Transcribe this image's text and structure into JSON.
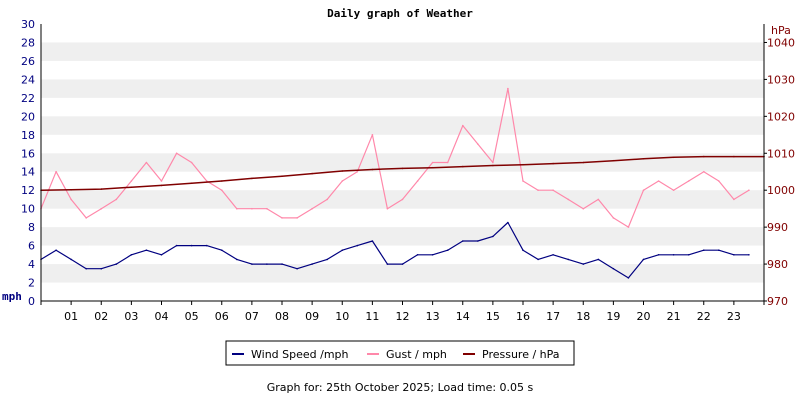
{
  "chart_data": {
    "type": "line",
    "title": "Daily graph of Weather",
    "left_axis": {
      "unit": "mph",
      "ylim": [
        0,
        30
      ],
      "ticks": [
        "0",
        "2",
        "4",
        "6",
        "8",
        "10",
        "12",
        "14",
        "16",
        "18",
        "20",
        "22",
        "24",
        "26",
        "28",
        "30"
      ]
    },
    "right_axis": {
      "unit": "hPa",
      "ylim": [
        970,
        1045
      ],
      "ticks": [
        "970",
        "980",
        "990",
        "1000",
        "1010",
        "1020",
        "1030",
        "1040"
      ]
    },
    "x_ticks": [
      "01",
      "02",
      "03",
      "04",
      "05",
      "06",
      "07",
      "08",
      "09",
      "10",
      "11",
      "12",
      "13",
      "14",
      "15",
      "16",
      "17",
      "18",
      "19",
      "20",
      "21",
      "22",
      "23"
    ],
    "xlim": [
      0,
      24
    ],
    "grid": "horizontal bands",
    "legend_position": "bottom",
    "series": [
      {
        "name": "Wind Speed /mph",
        "axis": "left",
        "color": "#000080",
        "x": [
          0,
          0.5,
          1,
          1.5,
          2,
          2.5,
          3,
          3.5,
          4,
          4.5,
          5,
          5.5,
          6,
          6.5,
          7,
          7.5,
          8,
          8.5,
          9,
          9.5,
          10,
          10.5,
          11,
          11.5,
          12,
          12.5,
          13,
          13.5,
          14,
          14.5,
          15,
          15.5,
          16,
          16.5,
          17,
          17.5,
          18,
          18.5,
          19,
          19.5,
          20,
          20.5,
          21,
          21.5,
          22,
          22.5,
          23,
          23.5
        ],
        "values": [
          4.5,
          5.5,
          4.5,
          3.5,
          3.5,
          4.0,
          5.0,
          5.5,
          5.0,
          6.0,
          6.0,
          6.0,
          5.5,
          4.5,
          4.0,
          4.0,
          4.0,
          3.5,
          4.0,
          4.5,
          5.5,
          6.0,
          6.5,
          4.0,
          4.0,
          5.0,
          5.0,
          5.5,
          6.5,
          6.5,
          7.0,
          8.5,
          5.5,
          4.5,
          5.0,
          4.5,
          4.0,
          4.5,
          3.5,
          2.5,
          4.5,
          5.0,
          5.0,
          5.0,
          5.5,
          5.5,
          5.0,
          5.0
        ]
      },
      {
        "name": "Gust / mph",
        "axis": "left",
        "color": "#ff88aa",
        "x": [
          0,
          0.5,
          1,
          1.5,
          2,
          2.5,
          3,
          3.5,
          4,
          4.5,
          5,
          5.5,
          6,
          6.5,
          7,
          7.5,
          8,
          8.5,
          9,
          9.5,
          10,
          10.5,
          11,
          11.5,
          12,
          12.5,
          13,
          13.5,
          14,
          14.5,
          15,
          15.5,
          16,
          16.5,
          17,
          17.5,
          18,
          18.5,
          19,
          19.5,
          20,
          20.5,
          21,
          21.5,
          22,
          22.5,
          23,
          23.5
        ],
        "values": [
          10,
          14,
          11,
          9,
          10,
          11,
          13,
          15,
          13,
          16,
          15,
          13,
          12,
          10,
          10,
          10,
          9,
          9,
          10,
          11,
          13,
          14,
          18,
          10,
          11,
          13,
          15,
          15,
          19,
          17,
          15,
          23,
          13,
          12,
          12,
          11,
          10,
          11,
          9,
          8,
          12,
          13,
          12,
          13,
          14,
          13,
          11,
          12
        ]
      },
      {
        "name": "Pressure / hPa",
        "axis": "right",
        "color": "#800000",
        "x": [
          0,
          1,
          2,
          3,
          4,
          5,
          6,
          7,
          8,
          9,
          10,
          11,
          12,
          13,
          14,
          15,
          16,
          17,
          18,
          19,
          20,
          21,
          22,
          23,
          24
        ],
        "values": [
          1000.0,
          1000.1,
          1000.3,
          1000.8,
          1001.3,
          1001.9,
          1002.5,
          1003.2,
          1003.8,
          1004.5,
          1005.2,
          1005.6,
          1005.9,
          1006.1,
          1006.4,
          1006.7,
          1006.9,
          1007.2,
          1007.5,
          1008.0,
          1008.5,
          1008.9,
          1009.1,
          1009.1,
          1009.1
        ]
      }
    ]
  },
  "footer": "Graph for: 25th October 2025; Load time: 0.05 s"
}
